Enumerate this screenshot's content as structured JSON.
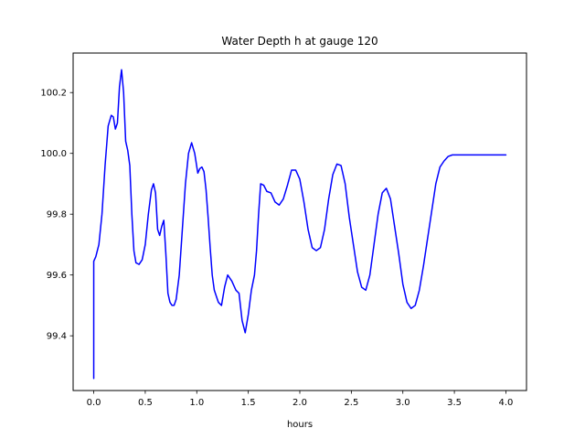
{
  "chart_data": {
    "type": "line",
    "title": "Water Depth h at gauge 120",
    "xlabel": "hours",
    "ylabel": "",
    "xlim": [
      -0.2,
      4.2
    ],
    "ylim": [
      99.22,
      100.33
    ],
    "xticks": [
      0.0,
      0.5,
      1.0,
      1.5,
      2.0,
      2.5,
      3.0,
      3.5,
      4.0
    ],
    "xtick_labels": [
      "0.0",
      "0.5",
      "1.0",
      "1.5",
      "2.0",
      "2.5",
      "3.0",
      "3.5",
      "4.0"
    ],
    "yticks": [
      99.4,
      99.6,
      99.8,
      100.0,
      100.2
    ],
    "ytick_labels": [
      "99.4",
      "99.6",
      "99.8",
      "100.0",
      "100.2"
    ],
    "grid": false,
    "series": [
      {
        "color": "#0000ff",
        "x": [
          0.0,
          0.0,
          0.02,
          0.05,
          0.08,
          0.11,
          0.14,
          0.17,
          0.19,
          0.21,
          0.23,
          0.25,
          0.27,
          0.29,
          0.31,
          0.33,
          0.35,
          0.37,
          0.39,
          0.41,
          0.44,
          0.47,
          0.5,
          0.53,
          0.56,
          0.58,
          0.6,
          0.62,
          0.64,
          0.66,
          0.68,
          0.7,
          0.72,
          0.74,
          0.76,
          0.78,
          0.8,
          0.83,
          0.86,
          0.89,
          0.92,
          0.95,
          0.98,
          1.01,
          1.03,
          1.05,
          1.07,
          1.09,
          1.11,
          1.13,
          1.15,
          1.17,
          1.19,
          1.21,
          1.24,
          1.27,
          1.3,
          1.34,
          1.38,
          1.41,
          1.44,
          1.47,
          1.5,
          1.53,
          1.56,
          1.58,
          1.6,
          1.62,
          1.65,
          1.68,
          1.72,
          1.76,
          1.8,
          1.84,
          1.88,
          1.92,
          1.96,
          2.0,
          2.04,
          2.08,
          2.12,
          2.16,
          2.2,
          2.24,
          2.28,
          2.32,
          2.36,
          2.4,
          2.44,
          2.48,
          2.52,
          2.56,
          2.6,
          2.64,
          2.68,
          2.72,
          2.76,
          2.8,
          2.84,
          2.88,
          2.92,
          2.96,
          3.0,
          3.04,
          3.08,
          3.12,
          3.16,
          3.2,
          3.24,
          3.28,
          3.32,
          3.36,
          3.4,
          3.44,
          3.48,
          3.52,
          3.56,
          3.6,
          3.64,
          3.68,
          3.72,
          3.76,
          3.8,
          3.84,
          3.88,
          3.92,
          3.96,
          4.0
        ],
        "values": [
          99.26,
          99.645,
          99.66,
          99.7,
          99.8,
          99.96,
          100.09,
          100.125,
          100.12,
          100.08,
          100.1,
          100.22,
          100.275,
          100.2,
          100.04,
          100.01,
          99.96,
          99.8,
          99.68,
          99.64,
          99.635,
          99.65,
          99.7,
          99.8,
          99.88,
          99.9,
          99.87,
          99.75,
          99.73,
          99.76,
          99.78,
          99.67,
          99.54,
          99.51,
          99.5,
          99.5,
          99.52,
          99.6,
          99.75,
          99.9,
          100.0,
          100.035,
          100.0,
          99.935,
          99.95,
          99.955,
          99.94,
          99.88,
          99.79,
          99.69,
          99.6,
          99.55,
          99.53,
          99.51,
          99.5,
          99.56,
          99.6,
          99.58,
          99.55,
          99.54,
          99.45,
          99.41,
          99.47,
          99.55,
          99.6,
          99.68,
          99.8,
          99.9,
          99.895,
          99.875,
          99.87,
          99.84,
          99.83,
          99.85,
          99.895,
          99.945,
          99.945,
          99.915,
          99.84,
          99.75,
          99.69,
          99.68,
          99.69,
          99.75,
          99.85,
          99.93,
          99.965,
          99.96,
          99.9,
          99.79,
          99.7,
          99.61,
          99.56,
          99.55,
          99.6,
          99.7,
          99.8,
          99.87,
          99.885,
          99.85,
          99.76,
          99.67,
          99.57,
          99.51,
          99.49,
          99.5,
          99.55,
          99.63,
          99.72,
          99.81,
          99.9,
          99.955,
          99.975,
          99.99,
          99.995,
          99.995,
          99.995,
          99.995,
          99.995,
          99.995,
          99.995,
          99.995,
          99.995,
          99.995,
          99.995,
          99.995,
          99.995,
          99.995
        ]
      }
    ]
  }
}
